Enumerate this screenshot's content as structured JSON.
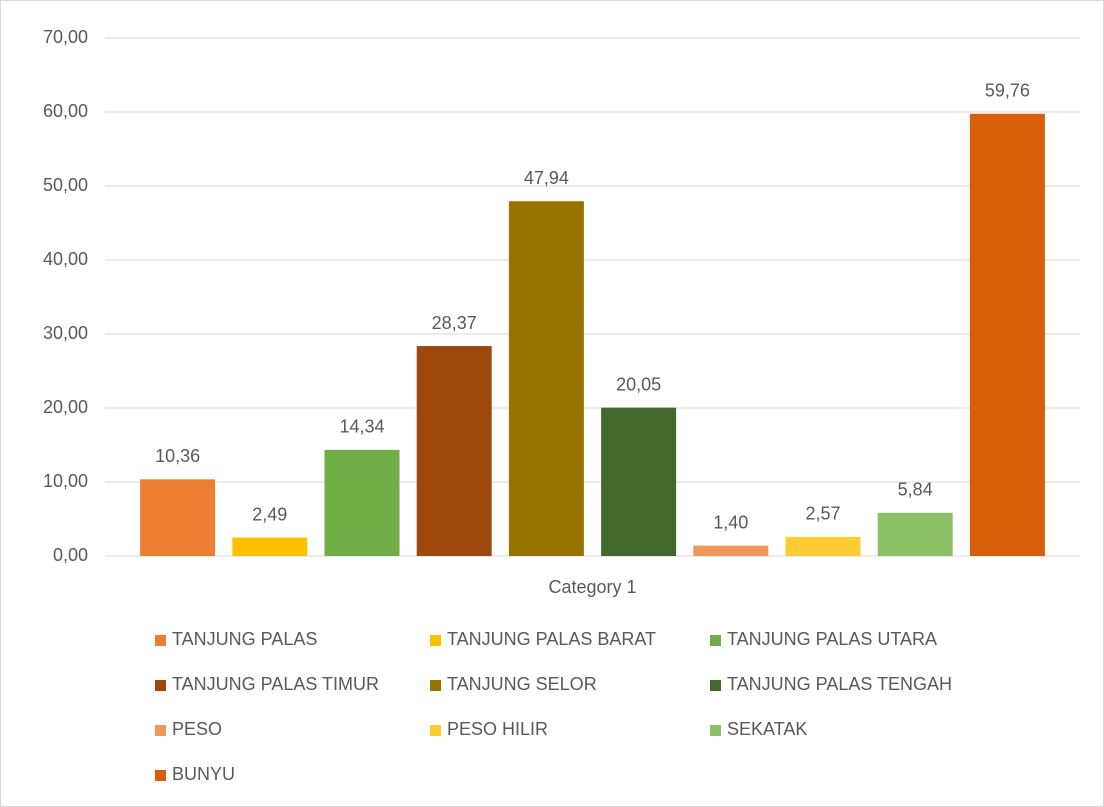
{
  "chart_data": {
    "type": "bar",
    "categories": [
      "Category 1"
    ],
    "series": [
      {
        "name": "TANJUNG PALAS",
        "color": "#ED7D31",
        "values": [
          10.36
        ],
        "value_labels": [
          "10,36"
        ]
      },
      {
        "name": "TANJUNG PALAS BARAT",
        "color": "#FFC000",
        "values": [
          2.49
        ],
        "value_labels": [
          "2,49"
        ]
      },
      {
        "name": "TANJUNG PALAS UTARA",
        "color": "#70AD47",
        "values": [
          14.34
        ],
        "value_labels": [
          "14,34"
        ]
      },
      {
        "name": "TANJUNG PALAS TIMUR",
        "color": "#9E480E",
        "values": [
          28.37
        ],
        "value_labels": [
          "28,37"
        ]
      },
      {
        "name": "TANJUNG SELOR",
        "color": "#997300",
        "values": [
          47.94
        ],
        "value_labels": [
          "47,94"
        ]
      },
      {
        "name": "TANJUNG PALAS TENGAH",
        "color": "#43682B",
        "values": [
          20.05
        ],
        "value_labels": [
          "20,05"
        ]
      },
      {
        "name": "PESO",
        "color": "#F1975A",
        "values": [
          1.4
        ],
        "value_labels": [
          "1,40"
        ]
      },
      {
        "name": "PESO HILIR",
        "color": "#FFCD33",
        "values": [
          2.57
        ],
        "value_labels": [
          "2,57"
        ]
      },
      {
        "name": "SEKATAK",
        "color": "#8CC168",
        "values": [
          5.84
        ],
        "value_labels": [
          "5,84"
        ]
      },
      {
        "name": "BUNYU",
        "color": "#D85E0A",
        "values": [
          59.76
        ],
        "value_labels": [
          "59,76"
        ]
      }
    ],
    "ylim": [
      0,
      70
    ],
    "yticks": [
      {
        "value": 0,
        "label": "0,00"
      },
      {
        "value": 10,
        "label": "10,00"
      },
      {
        "value": 20,
        "label": "20,00"
      },
      {
        "value": 30,
        "label": "30,00"
      },
      {
        "value": 40,
        "label": "40,00"
      },
      {
        "value": 50,
        "label": "50,00"
      },
      {
        "value": 60,
        "label": "60,00"
      },
      {
        "value": 70,
        "label": "70,00"
      }
    ],
    "grid": true,
    "legend": "bottom"
  }
}
